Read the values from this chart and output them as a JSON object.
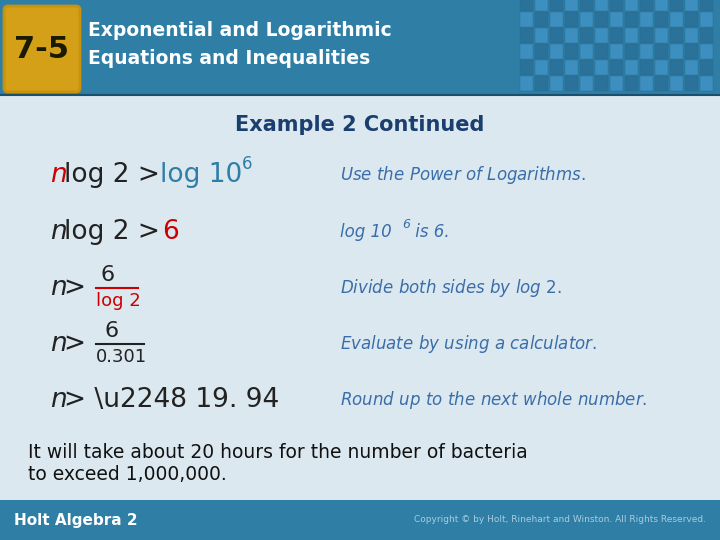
{
  "title_badge": "7-5",
  "header_line1": "Exponential and Logarithmic",
  "header_line2": "Equations and Inequalities",
  "section_title": "Example 2 Continued",
  "header_bg": "#2e7ea6",
  "header_text_color": "#ffffff",
  "badge_bg": "#d4a017",
  "badge_text_color": "#1a1a00",
  "section_title_color": "#1a3e6e",
  "body_bg": "#dce8f0",
  "eq_color": "#222222",
  "n_italic_color": "#cc0000",
  "highlight_color": "#cc0000",
  "log_color": "#2e7ea6",
  "explanation_color": "#3a6ea8",
  "footer_bg": "#2e7ea6",
  "footer_text": "Holt Algebra 2",
  "footer_color": "#ffffff",
  "copyright_text": "Copyright © by Holt, Rinehart and Winston. All Rights Reserved.",
  "bottom_text_line1": "It will take about 20 hours for the number of bacteria",
  "bottom_text_line2": "to exceed 1,000,000.",
  "bottom_text_color": "#111111",
  "tile_color1": "#3d8fbf",
  "tile_color2": "#2a7299"
}
